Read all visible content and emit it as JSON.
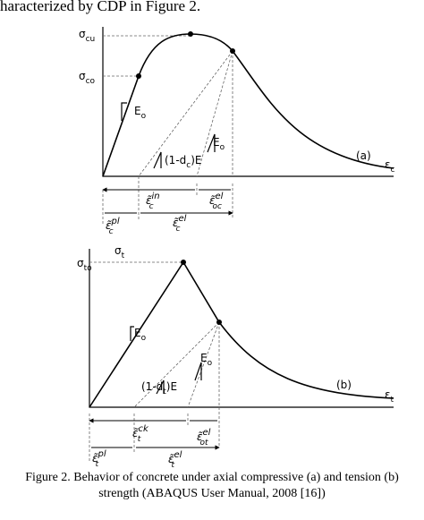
{
  "header_text": "haracterized by CDP in Figure 2.",
  "figure_a": {
    "panel_label": "(a)",
    "labels": [
      {
        "main": "σ",
        "sub": "cu"
      },
      {
        "main": "σ",
        "sub": "co"
      },
      {
        "main": "E",
        "sub": "o"
      },
      {
        "main": "(1-d",
        "sub": "c",
        "tail": ")E"
      },
      {
        "main": "E",
        "sub": "o"
      },
      {
        "main": "ε",
        "sub": "c"
      },
      {
        "main": "ε̃",
        "sub": "c",
        "sup": "in"
      },
      {
        "main": "ε̃",
        "sub": "oc",
        "sup": "el"
      },
      {
        "main": "ε̃",
        "sub": "c",
        "sup": "pl"
      },
      {
        "main": "ε̃",
        "sub": "c",
        "sup": "el"
      }
    ]
  },
  "figure_b": {
    "panel_label": "(b)",
    "labels": [
      {
        "main": "σ",
        "sub": "t"
      },
      {
        "main": "σ",
        "sub": "to"
      },
      {
        "main": "E",
        "sub": "o"
      },
      {
        "main": "(1-d",
        "sub": "t",
        "tail": ")E"
      },
      {
        "main": "E",
        "sub": "o"
      },
      {
        "main": "ε",
        "sub": "t"
      },
      {
        "main": "ε̃",
        "sub": "t",
        "sup": "ck"
      },
      {
        "main": "ε̃",
        "sub": "ot",
        "sup": "el"
      },
      {
        "main": "ε̃",
        "sub": "t",
        "sup": "pl"
      },
      {
        "main": "ε̃",
        "sub": "t",
        "sup": "el"
      }
    ]
  },
  "caption": [
    "Figure 2. Behavior of concrete under axial compressive (a) and tension (b)",
    "strength (ABAQUS User Manual, 2008 [16])"
  ]
}
